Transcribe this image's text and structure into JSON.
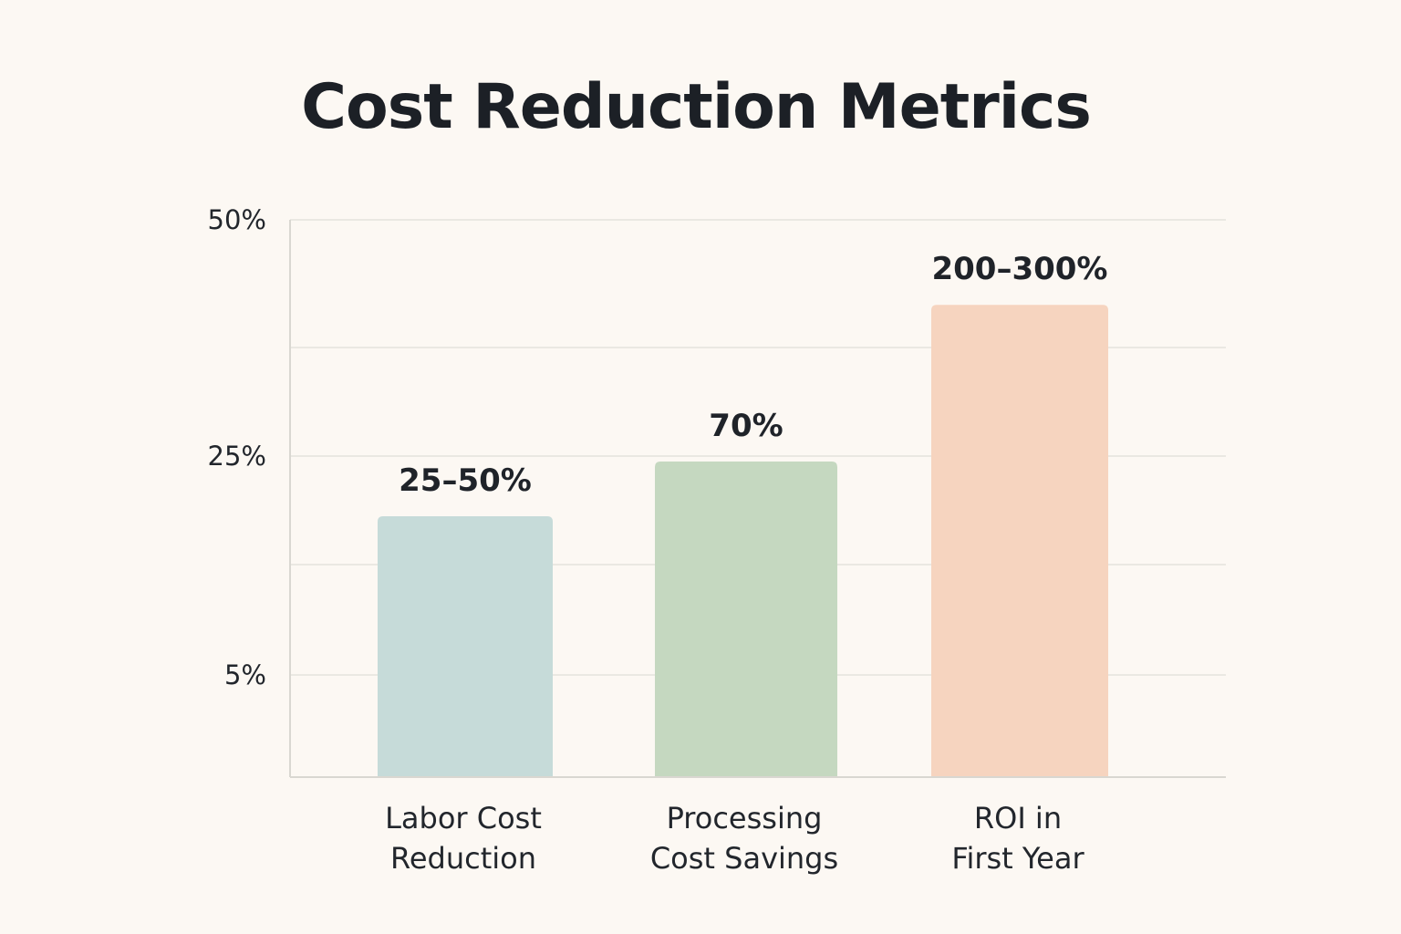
{
  "chart_data": {
    "type": "bar",
    "title": "Cost Reduction Metrics",
    "xlabel": "",
    "ylabel": "",
    "grid": true,
    "y_ticks": [
      {
        "value": 50,
        "label": "50%"
      },
      {
        "value": 25,
        "label": "25%"
      },
      {
        "value": 5,
        "label": "5%"
      }
    ],
    "categories": [
      {
        "lines": [
          "Labor Cost",
          "Reduction"
        ]
      },
      {
        "lines": [
          "Processing",
          "Cost Savings"
        ]
      },
      {
        "lines": [
          "ROI in",
          "First Year"
        ]
      }
    ],
    "bar_levels": [
      19.5,
      24.5,
      41
    ],
    "data_labels": [
      "25–50%",
      "70%",
      "200–300%"
    ],
    "colors": [
      "#c6dbd9",
      "#c5d8c0",
      "#f6d4bf"
    ]
  }
}
